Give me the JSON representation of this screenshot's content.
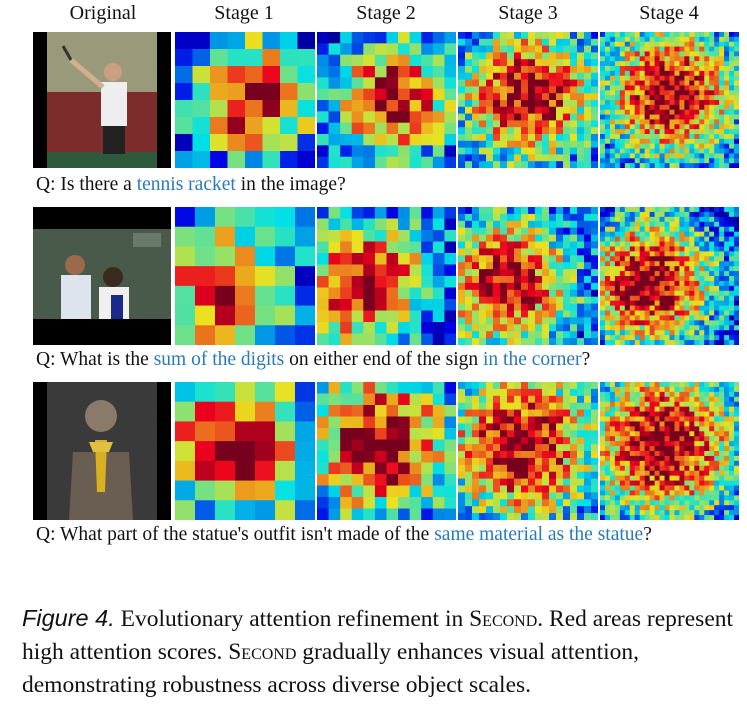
{
  "column_headers": [
    "Original",
    "Stage 1",
    "Stage 2",
    "Stage 3",
    "Stage 4"
  ],
  "rows": [
    {
      "question_prefix": "Q: Is there a ",
      "question_highlight": "tennis racket",
      "question_suffix": " in the image?",
      "question_mid": "",
      "question_highlight2": "",
      "question_end": ""
    },
    {
      "question_prefix": "Q: What is the ",
      "question_highlight": "sum of the digits",
      "question_mid": " on either end of the sign ",
      "question_highlight2": "in the corner",
      "question_end": "?",
      "question_suffix": ""
    },
    {
      "question_prefix": "Q: What part of the statue's outfit isn't made of the ",
      "question_highlight": "same material as the statue",
      "question_suffix": "?",
      "question_mid": "",
      "question_highlight2": "",
      "question_end": ""
    }
  ],
  "caption": {
    "label": "Figure 4.",
    "text1": " Evolutionary attention refinement in ",
    "second1": "Second",
    "text2": ". Red areas represent high attention scores. ",
    "second2": "Second",
    "text3": " gradually enhances visual attention, demonstrating robustness across diverse object scales."
  },
  "colors": {
    "highlight": "#2a7ab8",
    "heat_low": "#1a2a9a",
    "heat_high": "#e03020"
  }
}
